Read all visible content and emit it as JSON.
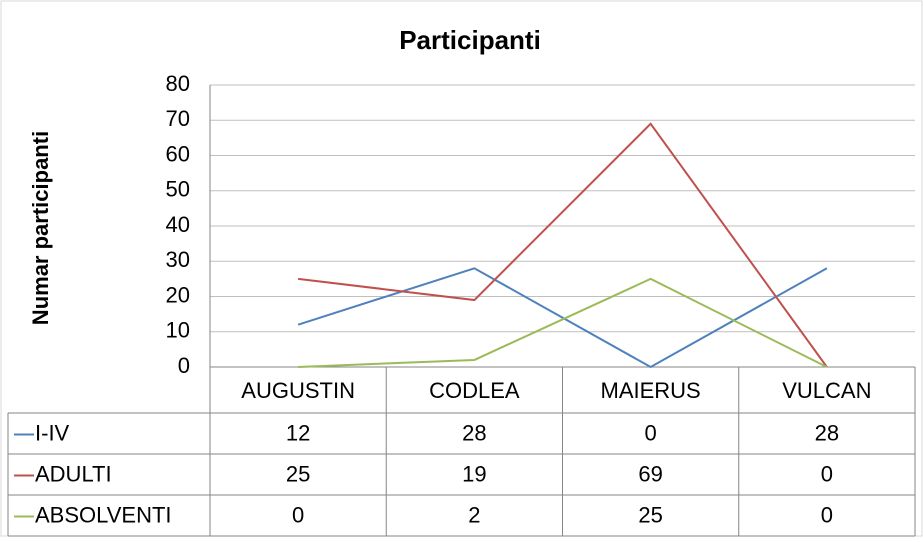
{
  "chart_data": {
    "type": "line",
    "title": "Participanti",
    "y_label": "Numar participanti",
    "categories": [
      "AUGUSTIN",
      "CODLEA",
      "MAIERUS",
      "VULCAN"
    ],
    "series": [
      {
        "name": "I-IV",
        "color": "#4f81bd",
        "values": [
          12,
          28,
          0,
          28
        ]
      },
      {
        "name": "ADULTI",
        "color": "#c0504d",
        "values": [
          25,
          19,
          69,
          0
        ]
      },
      {
        "name": "ABSOLVENTI",
        "color": "#9bbb59",
        "values": [
          0,
          2,
          25,
          0
        ]
      }
    ],
    "ylim": [
      0,
      80
    ],
    "yticks": [
      0,
      10,
      20,
      30,
      40,
      50,
      60,
      70,
      80
    ],
    "grid": true,
    "data_table": true
  }
}
